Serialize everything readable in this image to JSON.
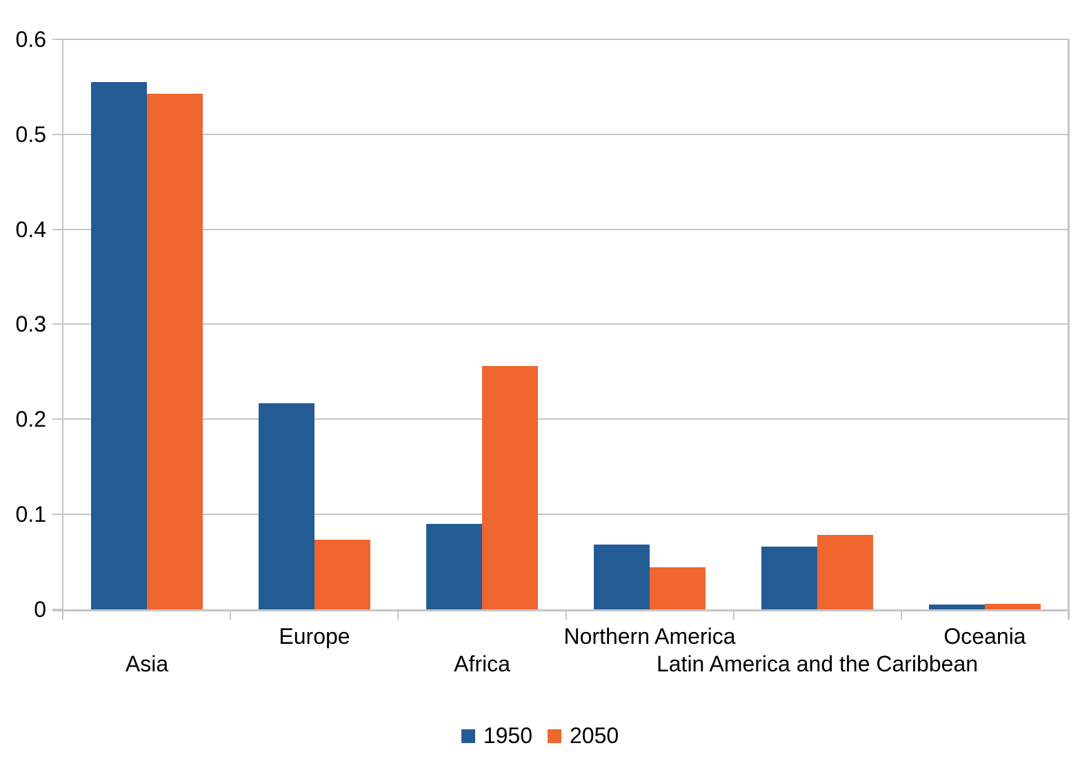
{
  "chart_data": {
    "type": "bar",
    "title": "",
    "xlabel": "",
    "ylabel": "",
    "categories": [
      "Asia",
      "Europe",
      "Africa",
      "Northern America",
      "Latin America and the Caribbean",
      "Oceania"
    ],
    "series": [
      {
        "name": "1950",
        "color": "#235c95",
        "values": [
          0.555,
          0.217,
          0.09,
          0.068,
          0.066,
          0.005
        ]
      },
      {
        "name": "2050",
        "color": "#ef662f",
        "values": [
          0.543,
          0.073,
          0.256,
          0.044,
          0.078,
          0.006
        ]
      }
    ],
    "ylim": [
      0,
      0.6
    ],
    "ytick_interval": 0.1,
    "ytick_labels": [
      "0",
      "0.1",
      "0.2",
      "0.3",
      "0.4",
      "0.5",
      "0.6"
    ],
    "grid": true,
    "grid_color": "#c6c6c6",
    "legend_position": "bottom",
    "bar_gap_ratio": 0.5,
    "x_labels_staggered": true
  }
}
